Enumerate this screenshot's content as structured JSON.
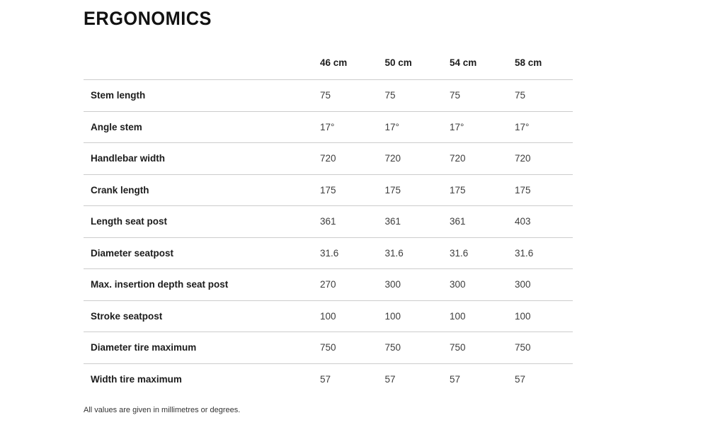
{
  "page": {
    "title": "ERGONOMICS",
    "footnote": "All values are given in millimetres or degrees."
  },
  "table": {
    "columns": [
      "46 cm",
      "50 cm",
      "54 cm",
      "58 cm"
    ],
    "rows": [
      {
        "label": "Stem length",
        "values": [
          "75",
          "75",
          "75",
          "75"
        ]
      },
      {
        "label": "Angle stem",
        "values": [
          "17°",
          "17°",
          "17°",
          "17°"
        ]
      },
      {
        "label": "Handlebar width",
        "values": [
          "720",
          "720",
          "720",
          "720"
        ]
      },
      {
        "label": "Crank length",
        "values": [
          "175",
          "175",
          "175",
          "175"
        ]
      },
      {
        "label": "Length seat post",
        "values": [
          "361",
          "361",
          "361",
          "403"
        ]
      },
      {
        "label": "Diameter seatpost",
        "values": [
          "31.6",
          "31.6",
          "31.6",
          "31.6"
        ]
      },
      {
        "label": "Max. insertion depth seat post",
        "values": [
          "270",
          "300",
          "300",
          "300"
        ]
      },
      {
        "label": "Stroke seatpost",
        "values": [
          "100",
          "100",
          "100",
          "100"
        ]
      },
      {
        "label": "Diameter tire maximum",
        "values": [
          "750",
          "750",
          "750",
          "750"
        ]
      },
      {
        "label": "Width tire maximum",
        "values": [
          "57",
          "57",
          "57",
          "57"
        ]
      }
    ]
  },
  "colors": {
    "background": "#ffffff",
    "title_text": "#121212",
    "label_text": "#1c1c1c",
    "value_text": "#3d3d3d",
    "divider": "#cccccc",
    "footnote_text": "#333333"
  }
}
